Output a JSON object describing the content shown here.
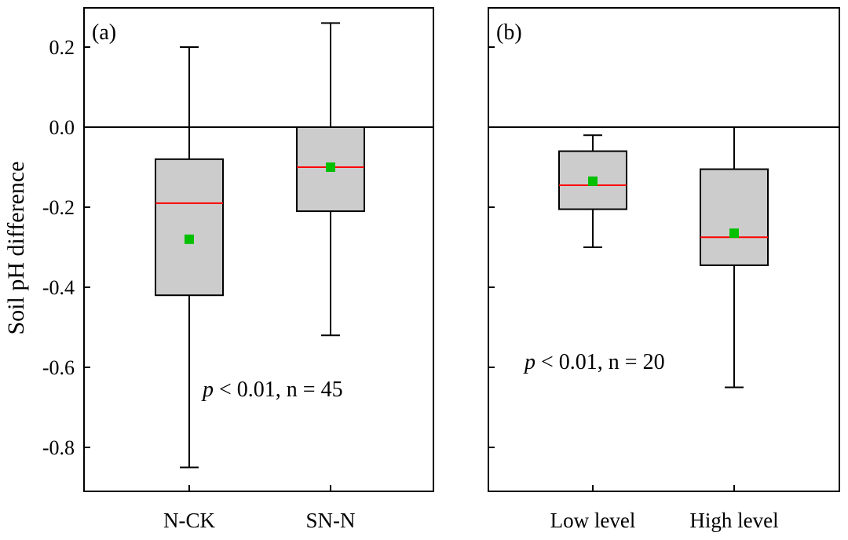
{
  "y_axis_label": "Soil pH difference",
  "chart_data": [
    {
      "type": "box",
      "panel_label": "(a)",
      "annotation": {
        "p_symbol": "p",
        "text": " < 0.01, n = 45"
      },
      "ylim": [
        -0.9,
        0.3
      ],
      "yticks": [
        0.2,
        0.0,
        -0.2,
        -0.4,
        -0.6,
        -0.8
      ],
      "ytick_labels": [
        "0.2",
        "0.0",
        "-0.2",
        "-0.4",
        "-0.6",
        "-0.8"
      ],
      "reference_line": 0,
      "categories": [
        "N-CK",
        "SN-N"
      ],
      "boxes": [
        {
          "label": "N-CK",
          "whisker_low": -0.85,
          "q1": -0.42,
          "median": -0.19,
          "q3": -0.08,
          "whisker_high": 0.2,
          "mean": -0.28
        },
        {
          "label": "SN-N",
          "whisker_low": -0.52,
          "q1": -0.21,
          "median": -0.1,
          "q3": 0.0,
          "whisker_high": 0.26,
          "mean": -0.1
        }
      ]
    },
    {
      "type": "box",
      "panel_label": "(b)",
      "annotation": {
        "p_symbol": "p",
        "text": " < 0.01, n = 20"
      },
      "ylim": [
        -0.9,
        0.3
      ],
      "yticks": [
        0.2,
        0.0,
        -0.2,
        -0.4,
        -0.6,
        -0.8
      ],
      "ytick_labels": [],
      "reference_line": 0,
      "categories": [
        "Low level",
        "High level"
      ],
      "boxes": [
        {
          "label": "Low level",
          "whisker_low": -0.3,
          "q1": -0.205,
          "median": -0.145,
          "q3": -0.06,
          "whisker_high": -0.02,
          "mean": -0.135
        },
        {
          "label": "High level",
          "whisker_low": -0.65,
          "q1": -0.345,
          "median": -0.275,
          "q3": -0.105,
          "whisker_high": 0.0,
          "mean": -0.265
        }
      ]
    }
  ],
  "colors": {
    "box_fill": "#cccccc",
    "median_line": "#ff0000",
    "mean_marker": "#00c000",
    "axis": "#000000"
  }
}
